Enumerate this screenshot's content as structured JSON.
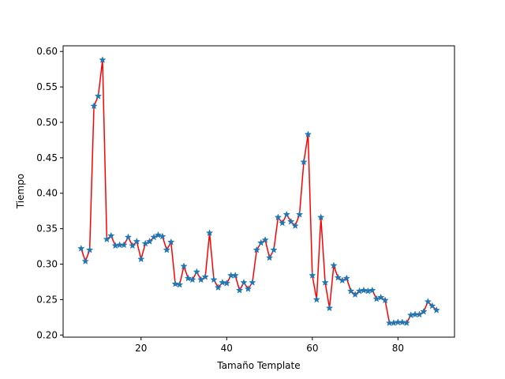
{
  "chart_data": {
    "type": "line",
    "title": "",
    "xlabel": "Tamaño Template",
    "ylabel": "Tiempo",
    "xlim": [
      1.8,
      93.2
    ],
    "ylim": [
      0.197,
      0.608
    ],
    "xticks": [
      20,
      40,
      60,
      80
    ],
    "yticks": [
      0.2,
      0.25,
      0.3,
      0.35,
      0.4,
      0.45,
      0.5,
      0.55,
      0.6
    ],
    "xtick_labels": [
      "20",
      "40",
      "60",
      "80"
    ],
    "ytick_labels": [
      "0.20",
      "0.25",
      "0.30",
      "0.35",
      "0.40",
      "0.45",
      "0.50",
      "0.55",
      "0.60"
    ],
    "grid": false,
    "legend": "none",
    "line_color": "#ff0000",
    "marker_color": "#1f77b4",
    "marker": "star",
    "x": [
      6,
      7,
      8,
      9,
      10,
      11,
      12,
      13,
      14,
      15,
      16,
      17,
      18,
      19,
      20,
      21,
      22,
      23,
      24,
      25,
      26,
      27,
      28,
      29,
      30,
      31,
      32,
      33,
      34,
      35,
      36,
      37,
      38,
      39,
      40,
      41,
      42,
      43,
      44,
      45,
      46,
      47,
      48,
      49,
      50,
      51,
      52,
      53,
      54,
      55,
      56,
      57,
      58,
      59,
      60,
      61,
      62,
      63,
      64,
      65,
      66,
      67,
      68,
      69,
      70,
      71,
      72,
      73,
      74,
      75,
      76,
      77,
      78,
      79,
      80,
      81,
      82,
      83,
      84,
      85,
      86,
      87,
      88,
      89
    ],
    "y": [
      0.322,
      0.304,
      0.32,
      0.523,
      0.537,
      0.588,
      0.335,
      0.34,
      0.326,
      0.327,
      0.327,
      0.338,
      0.326,
      0.332,
      0.307,
      0.329,
      0.332,
      0.338,
      0.341,
      0.339,
      0.32,
      0.331,
      0.272,
      0.271,
      0.297,
      0.28,
      0.278,
      0.289,
      0.278,
      0.282,
      0.344,
      0.278,
      0.267,
      0.274,
      0.273,
      0.284,
      0.284,
      0.263,
      0.274,
      0.265,
      0.274,
      0.32,
      0.33,
      0.334,
      0.309,
      0.32,
      0.366,
      0.358,
      0.37,
      0.36,
      0.354,
      0.37,
      0.444,
      0.483,
      0.284,
      0.25,
      0.366,
      0.274,
      0.238,
      0.298,
      0.281,
      0.277,
      0.28,
      0.262,
      0.257,
      0.262,
      0.263,
      0.262,
      0.263,
      0.251,
      0.253,
      0.249,
      0.217,
      0.217,
      0.218,
      0.218,
      0.217,
      0.228,
      0.229,
      0.229,
      0.233,
      0.247,
      0.241,
      0.235
    ]
  }
}
